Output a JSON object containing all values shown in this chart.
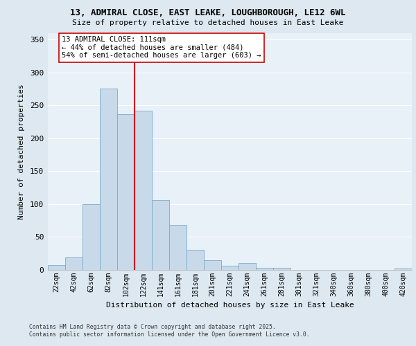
{
  "title_line1": "13, ADMIRAL CLOSE, EAST LEAKE, LOUGHBOROUGH, LE12 6WL",
  "title_line2": "Size of property relative to detached houses in East Leake",
  "xlabel": "Distribution of detached houses by size in East Leake",
  "ylabel": "Number of detached properties",
  "bar_labels": [
    "22sqm",
    "42sqm",
    "62sqm",
    "82sqm",
    "102sqm",
    "122sqm",
    "141sqm",
    "161sqm",
    "181sqm",
    "201sqm",
    "221sqm",
    "241sqm",
    "261sqm",
    "281sqm",
    "301sqm",
    "321sqm",
    "340sqm",
    "360sqm",
    "380sqm",
    "400sqm",
    "420sqm"
  ],
  "bar_values": [
    7,
    19,
    100,
    275,
    237,
    242,
    106,
    68,
    30,
    15,
    6,
    10,
    3,
    3,
    0,
    0,
    0,
    0,
    0,
    0,
    2
  ],
  "bar_color": "#c8daea",
  "bar_edge_color": "#7aaac8",
  "vline_color": "#cc0000",
  "annotation_text": "13 ADMIRAL CLOSE: 111sqm\n← 44% of detached houses are smaller (484)\n54% of semi-detached houses are larger (603) →",
  "annotation_box_color": "#ffffff",
  "annotation_box_edge": "#cc0000",
  "bg_color": "#dde8f0",
  "plot_bg_color": "#e8f0f8",
  "grid_color": "#ffffff",
  "ylim": [
    0,
    360
  ],
  "yticks": [
    0,
    50,
    100,
    150,
    200,
    250,
    300,
    350
  ],
  "footer1": "Contains HM Land Registry data © Crown copyright and database right 2025.",
  "footer2": "Contains public sector information licensed under the Open Government Licence v3.0."
}
